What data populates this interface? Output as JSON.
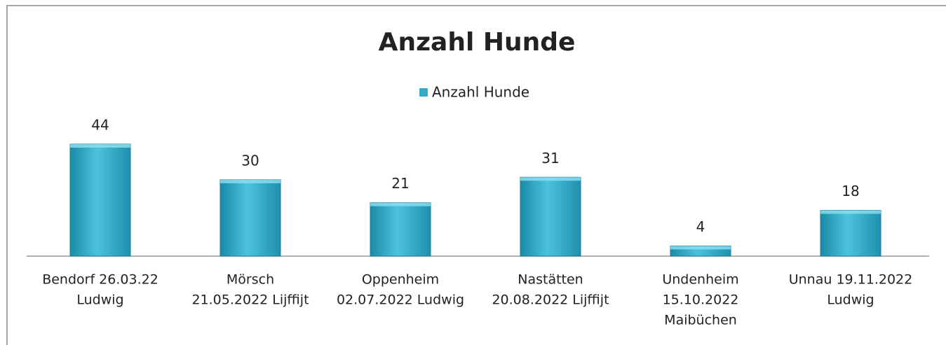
{
  "chart_data": {
    "type": "bar",
    "title": "Anzahl Hunde",
    "categories": [
      [
        "Bendorf   26.03.22",
        "Ludwig"
      ],
      [
        "Mörsch",
        "21.05.2022  Lijffijt"
      ],
      [
        "Oppenheim",
        "02.07.2022 Ludwig"
      ],
      [
        "Nastätten",
        "20.08.2022 Lijffijt"
      ],
      [
        "Undenheim",
        "15.10.2022",
        "Maibüchen"
      ],
      [
        "Unnau  19.11.2022",
        "Ludwig"
      ]
    ],
    "series": [
      {
        "name": "Anzahl Hunde",
        "color": "#35abc9",
        "values": [
          44,
          30,
          21,
          31,
          4,
          18
        ]
      }
    ],
    "legend": "top"
  }
}
